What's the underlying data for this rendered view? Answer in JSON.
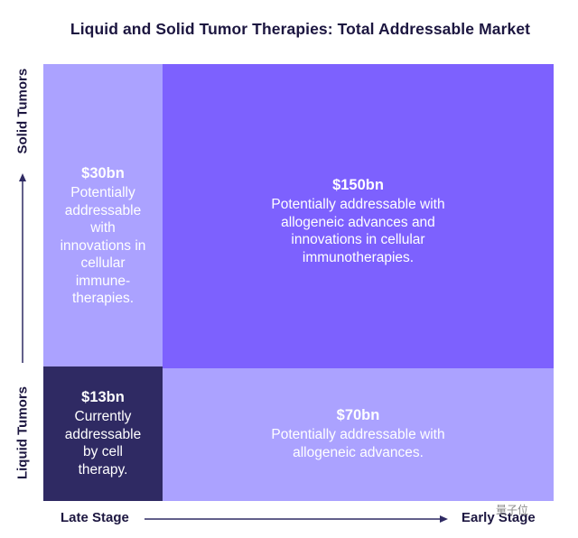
{
  "title": "Liquid and Solid Tumor Therapies: Total Addressable Market",
  "axes": {
    "y_top": "Solid Tumors",
    "y_bottom": "Liquid Tumors",
    "x_left": "Late Stage",
    "x_right": "Early Stage"
  },
  "quadrants": {
    "top_left": {
      "value": "$30bn",
      "description": "Potentially addressable with innovations in cellular immune-therapies."
    },
    "top_right": {
      "value": "$150bn",
      "description": "Potentially addressable with allogeneic advances and innovations in cellular immunotherapies."
    },
    "bottom_left": {
      "value": "$13bn",
      "description": "Currently addressable by cell therapy."
    },
    "bottom_right": {
      "value": "$70bn",
      "description": "Potentially addressable with allogeneic advances."
    }
  },
  "colors": {
    "light_purple": "#aba2ff",
    "medium_purple": "#7d61fe",
    "dark_navy": "#2f2a63",
    "text_dark": "#1c1640"
  },
  "watermark": "量子位"
}
